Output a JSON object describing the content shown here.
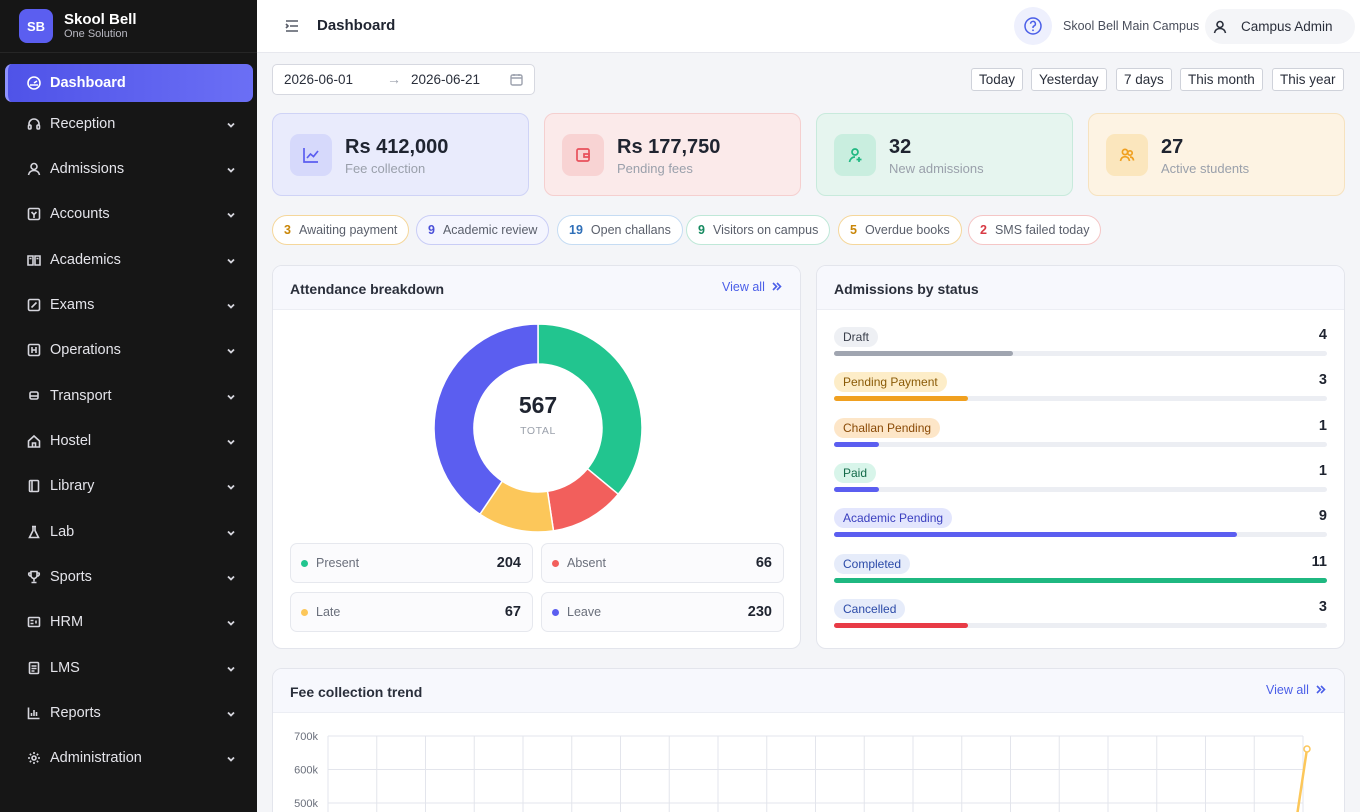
{
  "brand": {
    "logo": "SB",
    "name": "Skool Bell",
    "subtitle": "One Solution"
  },
  "sidebar": {
    "items": [
      {
        "label": "Dashboard",
        "icon": "dashboard-icon",
        "active": true
      },
      {
        "label": "Reception",
        "icon": "headset-icon"
      },
      {
        "label": "Admissions",
        "icon": "user-icon"
      },
      {
        "label": "Accounts",
        "icon": "wallet-icon"
      },
      {
        "label": "Academics",
        "icon": "book-icon"
      },
      {
        "label": "Exams",
        "icon": "edit-icon"
      },
      {
        "label": "Operations",
        "icon": "grid-icon"
      },
      {
        "label": "Transport",
        "icon": "bus-icon"
      },
      {
        "label": "Hostel",
        "icon": "home-icon"
      },
      {
        "label": "Library",
        "icon": "library-icon"
      },
      {
        "label": "Lab",
        "icon": "flask-icon"
      },
      {
        "label": "Sports",
        "icon": "trophy-icon"
      },
      {
        "label": "HRM",
        "icon": "id-card-icon"
      },
      {
        "label": "LMS",
        "icon": "document-icon"
      },
      {
        "label": "Reports",
        "icon": "bar-chart-icon"
      },
      {
        "label": "Administration",
        "icon": "gear-icon"
      }
    ]
  },
  "header": {
    "title": "Dashboard",
    "campus": "Skool Bell Main Campus",
    "user": "Campus Admin"
  },
  "filters": {
    "date_from": "2026-06-01",
    "date_to": "2026-06-21",
    "arrow": "→",
    "quick": [
      "Today",
      "Yesterday",
      "7 days",
      "This month",
      "This year"
    ]
  },
  "kpis": [
    {
      "value": "Rs 412,000",
      "label": "Fee collection",
      "icon": "trend-icon",
      "accent": "#5b5ef0"
    },
    {
      "value": "Rs 177,750",
      "label": "Pending fees",
      "icon": "wallet-icon",
      "accent": "#e8505b"
    },
    {
      "value": "32",
      "label": "New admissions",
      "icon": "user-plus-icon",
      "accent": "#1fb881"
    },
    {
      "value": "27",
      "label": "Active students",
      "icon": "users-icon",
      "accent": "#f0a020"
    }
  ],
  "pills": [
    {
      "count": "3",
      "label": "Awaiting payment",
      "color": "#f0a020"
    },
    {
      "count": "9",
      "label": "Academic review",
      "color": "#5b5ef0"
    },
    {
      "count": "19",
      "label": "Open challans",
      "color": "#3b8ee0"
    },
    {
      "count": "9",
      "label": "Visitors on campus",
      "color": "#1fb881"
    },
    {
      "count": "5",
      "label": "Overdue books",
      "color": "#f0a020"
    },
    {
      "count": "2",
      "label": "SMS failed today",
      "color": "#e8505b"
    }
  ],
  "attendance": {
    "title": "Attendance breakdown",
    "view_all": "View all",
    "total": "567",
    "total_label": "TOTAL",
    "items": [
      {
        "name": "Present",
        "value": "204",
        "color": "#22c58f"
      },
      {
        "name": "Absent",
        "value": "66",
        "color": "#f25f5c"
      },
      {
        "name": "Late",
        "value": "67",
        "color": "#fcc75a"
      },
      {
        "name": "Leave",
        "value": "230",
        "color": "#5b5ef0"
      }
    ]
  },
  "admissions": {
    "title": "Admissions by status",
    "max": 11,
    "rows": [
      {
        "label": "Draft",
        "count": "4",
        "bg": "#eef0f4",
        "fg": "#3a3f4b",
        "bar": "#a0a5b0"
      },
      {
        "label": "Pending Payment",
        "count": "3",
        "bg": "#fdedc8",
        "fg": "#8a5a06",
        "bar": "#f0a020"
      },
      {
        "label": "Challan Pending",
        "count": "1",
        "bg": "#fde6c8",
        "fg": "#8a4a06",
        "bar": "#5b5ef0"
      },
      {
        "label": "Paid",
        "count": "1",
        "bg": "#d8f5ea",
        "fg": "#146b4a",
        "bar": "#5b5ef0"
      },
      {
        "label": "Academic Pending",
        "count": "9",
        "bg": "#e3e6fd",
        "fg": "#3a3fbf",
        "bar": "#5b5ef0"
      },
      {
        "label": "Completed",
        "count": "11",
        "bg": "#e6ecfa",
        "fg": "#2b4aa8",
        "bar": "#1fb881"
      },
      {
        "label": "Cancelled",
        "count": "3",
        "bg": "#e6ecfa",
        "fg": "#2b4aa8",
        "bar": "#e83b46"
      }
    ]
  },
  "fee_trend": {
    "title": "Fee collection trend",
    "view_all": "View all",
    "chart_data": {
      "type": "line",
      "y_ticks": [
        "700k",
        "600k",
        "500k"
      ],
      "ylim": [
        500000,
        700000
      ],
      "line_color": "#fcc75a"
    }
  }
}
